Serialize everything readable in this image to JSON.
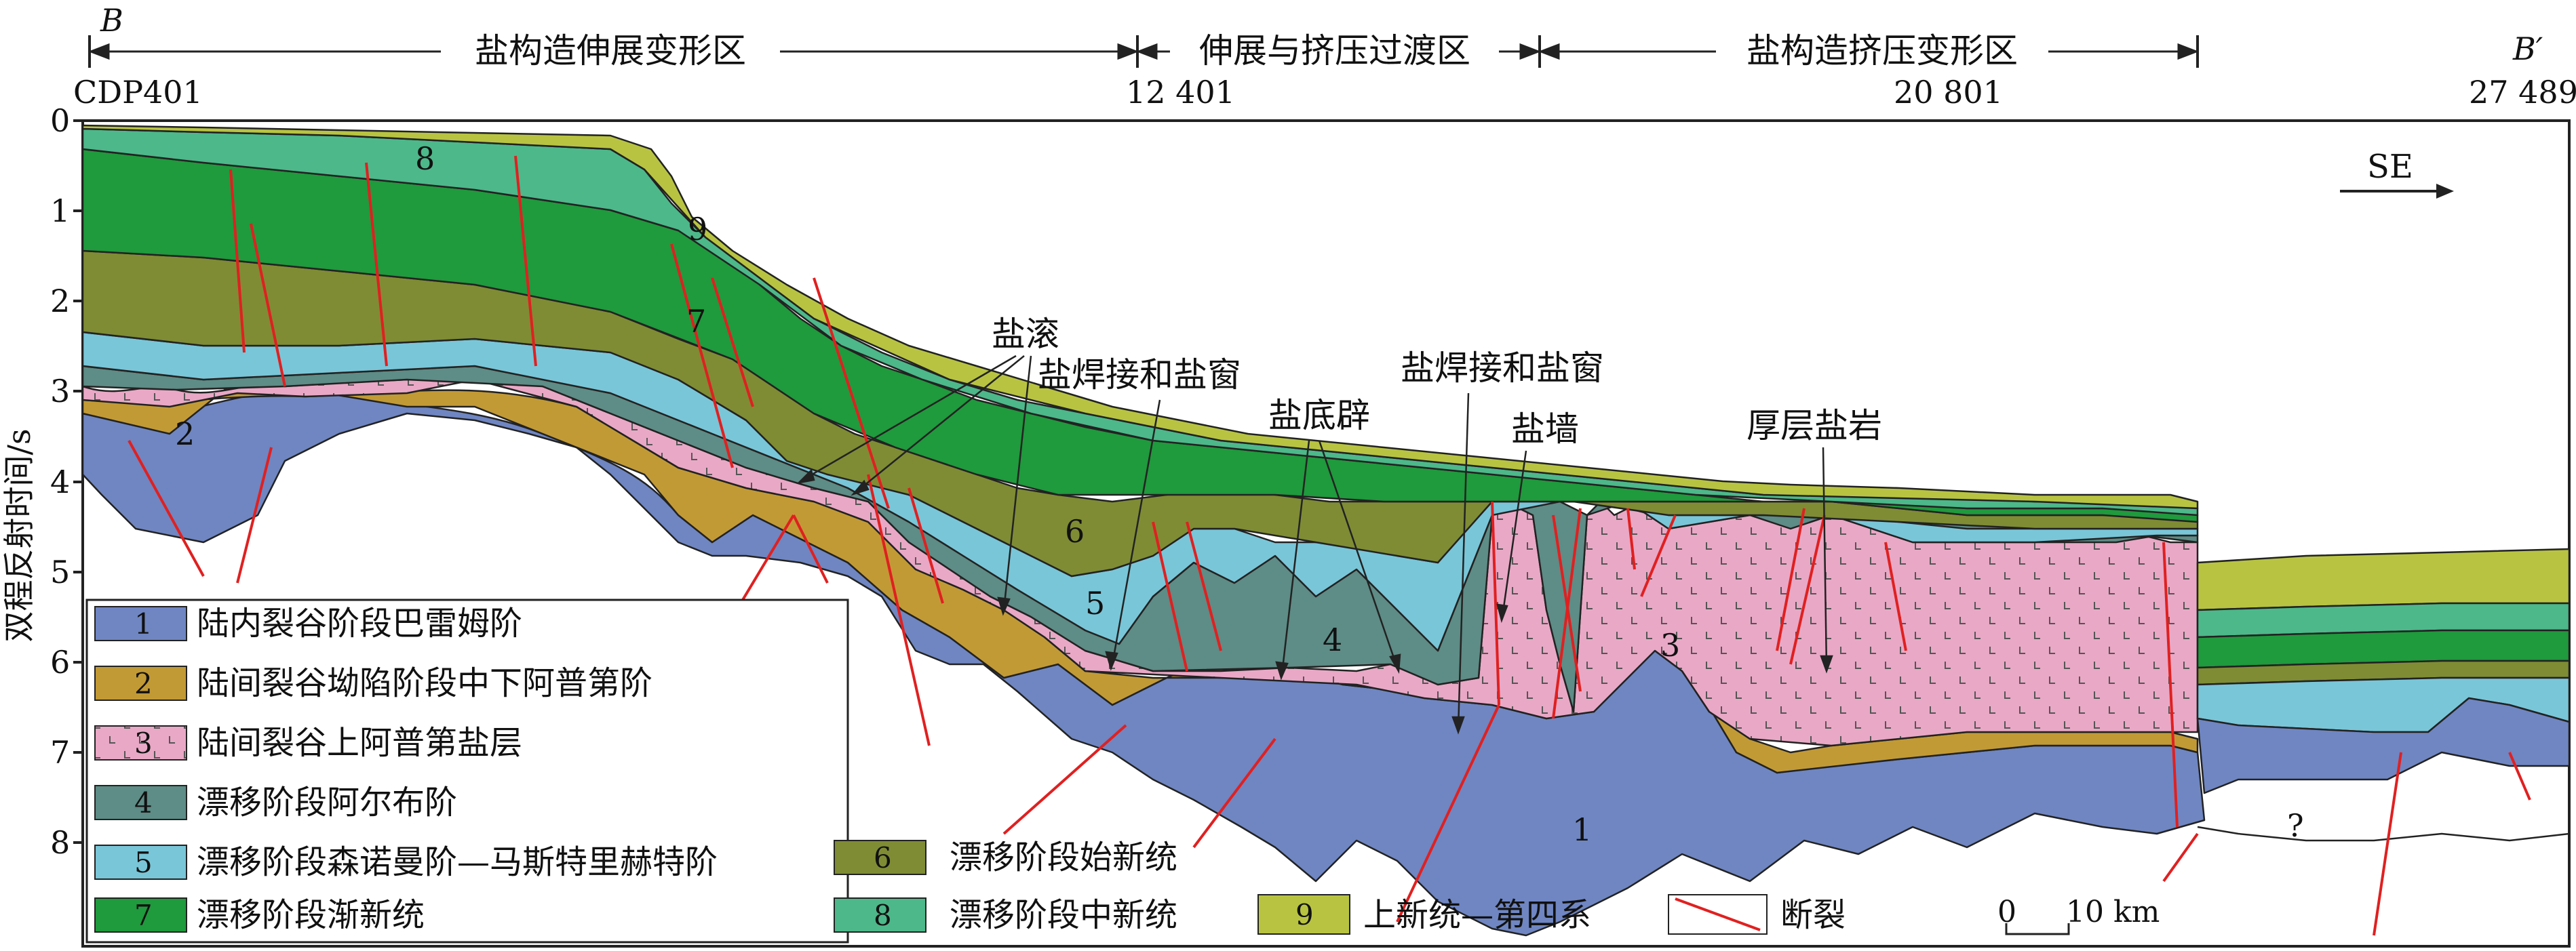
{
  "header": {
    "left_letter": "B",
    "right_letter": "B′",
    "zones": [
      "盐构造伸展变形区",
      "伸展与挤压过渡区",
      "盐构造挤压变形区"
    ],
    "cdp_labels": [
      "CDP401",
      "12 401",
      "20 801",
      "27 489"
    ]
  },
  "axis": {
    "ylabel": "双程反射时间/s",
    "ticks": [
      "0",
      "1",
      "2",
      "3",
      "4",
      "5",
      "6",
      "7",
      "8"
    ]
  },
  "direction_label": "SE",
  "annotations": [
    "盐滚",
    "盐焊接和盐窗",
    "盐底辟",
    "盐焊接和盐窗",
    "盐墙",
    "厚层盐岩"
  ],
  "unit_numbers": [
    "8",
    "9",
    "7",
    "2",
    "6",
    "5",
    "4",
    "3",
    "1",
    "?"
  ],
  "legend": [
    {
      "num": "1",
      "label": "陆内裂谷阶段巴雷姆阶",
      "color": "#6f86c2"
    },
    {
      "num": "2",
      "label": "陆间裂谷坳陷阶段中下阿普第阶",
      "color": "#c29a35"
    },
    {
      "num": "3",
      "label": "陆间裂谷上阿普第盐层",
      "color": "#e9a8c6"
    },
    {
      "num": "4",
      "label": "漂移阶段阿尔布阶",
      "color": "#5e8c86"
    },
    {
      "num": "5",
      "label": "漂移阶段森诺曼阶—马斯特里赫特阶",
      "color": "#79c6d8"
    },
    {
      "num": "6",
      "label": "漂移阶段始新统",
      "color": "#7f8c34"
    },
    {
      "num": "7",
      "label": "漂移阶段渐新统",
      "color": "#1f9a3d"
    },
    {
      "num": "8",
      "label": "漂移阶段中新统",
      "color": "#4db88a"
    },
    {
      "num": "9",
      "label": "上新统—第四系",
      "color": "#b8c441"
    }
  ],
  "fault_legend": "断裂",
  "scale": {
    "zero": "0",
    "label": "10 km"
  },
  "colors": {
    "fault": "#e02020",
    "outline": "#222222"
  }
}
